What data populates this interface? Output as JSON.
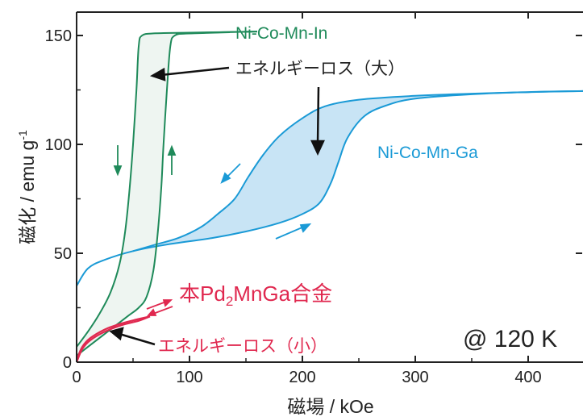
{
  "chart_data": {
    "type": "line",
    "xlabel": "磁場 / kOe",
    "ylabel": "磁化 / emu g",
    "ylabel_sup": "-1",
    "xlim": [
      0,
      450
    ],
    "ylim": [
      0,
      160
    ],
    "x_ticks": [
      0,
      100,
      200,
      300,
      400
    ],
    "y_ticks": [
      0,
      50,
      100,
      150
    ],
    "temperature_label": "@ 120 K",
    "colors": {
      "in": "#1f8a5a",
      "ga": "#1a9ad6",
      "pd": "#e0284f",
      "in_fill": "#eef5f1",
      "ga_fill": "#c8e4f5",
      "axis": "#222222"
    },
    "series": [
      {
        "name": "Ni-Co-Mn-In",
        "color": "#1f8a5a",
        "increasing": [
          [
            0,
            3
          ],
          [
            15,
            9
          ],
          [
            30,
            15
          ],
          [
            45,
            21
          ],
          [
            55,
            25
          ],
          [
            62,
            30
          ],
          [
            68,
            42
          ],
          [
            72,
            60
          ],
          [
            75,
            80
          ],
          [
            77,
            100
          ],
          [
            80,
            125
          ],
          [
            83,
            145
          ],
          [
            87,
            150
          ],
          [
            100,
            151
          ],
          [
            130,
            151.5
          ],
          [
            160,
            151.8
          ]
        ],
        "decreasing": [
          [
            160,
            151.8
          ],
          [
            100,
            151.3
          ],
          [
            70,
            151
          ],
          [
            58,
            150
          ],
          [
            55,
            145
          ],
          [
            53,
            125
          ],
          [
            50,
            100
          ],
          [
            47,
            80
          ],
          [
            43,
            60
          ],
          [
            38,
            45
          ],
          [
            30,
            32
          ],
          [
            20,
            22
          ],
          [
            10,
            14
          ],
          [
            0,
            7
          ]
        ]
      },
      {
        "name": "Ni-Co-Mn-Ga",
        "color": "#1a9ad6",
        "increasing": [
          [
            0,
            35
          ],
          [
            10,
            43
          ],
          [
            25,
            47
          ],
          [
            50,
            51
          ],
          [
            80,
            54
          ],
          [
            120,
            57
          ],
          [
            150,
            60
          ],
          [
            180,
            64
          ],
          [
            200,
            68
          ],
          [
            215,
            73
          ],
          [
            225,
            82
          ],
          [
            232,
            92
          ],
          [
            240,
            103
          ],
          [
            255,
            113
          ],
          [
            275,
            118
          ],
          [
            300,
            121
          ],
          [
            350,
            123
          ],
          [
            400,
            124
          ],
          [
            450,
            124.5
          ]
        ],
        "decreasing": [
          [
            450,
            124.5
          ],
          [
            400,
            124
          ],
          [
            350,
            123.3
          ],
          [
            300,
            122.3
          ],
          [
            250,
            120.5
          ],
          [
            220,
            117.5
          ],
          [
            200,
            112
          ],
          [
            180,
            104
          ],
          [
            165,
            95
          ],
          [
            152,
            85
          ],
          [
            140,
            75
          ],
          [
            125,
            68
          ],
          [
            110,
            62
          ],
          [
            90,
            57
          ],
          [
            70,
            54
          ],
          [
            50,
            51
          ]
        ]
      },
      {
        "name": "本Pd₂MnGa合金",
        "color": "#e0284f",
        "increasing": [
          [
            0,
            0
          ],
          [
            5,
            6
          ],
          [
            12,
            10
          ],
          [
            25,
            14
          ],
          [
            40,
            17
          ],
          [
            55,
            19
          ],
          [
            65,
            21
          ]
        ],
        "decreasing": [
          [
            65,
            21
          ],
          [
            55,
            19.8
          ],
          [
            40,
            17.8
          ],
          [
            25,
            15
          ],
          [
            12,
            11
          ],
          [
            5,
            7
          ],
          [
            0,
            1
          ]
        ]
      }
    ],
    "annotations": {
      "ga_series_label": "Ni-Co-Mn-Ga",
      "in_series_label": "Ni-Co-Mn-In",
      "pd_label_pre": "本Pd",
      "pd_label_sub": "2",
      "pd_label_post": "MnGa合金",
      "loss_large": "エネルギーロス（大）",
      "loss_small": "エネルギーロス（小）"
    }
  }
}
